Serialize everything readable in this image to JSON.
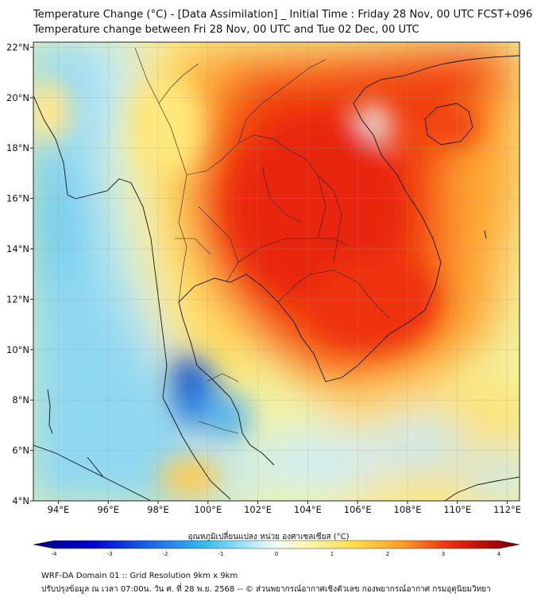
{
  "header": {
    "title_line1": "Temperature Change (°C) - [Data Assimilation] _ Initial Time : Friday 28 Nov, 00 UTC FCST+096",
    "title_line2": "Temperature change between Fri 28 Nov, 00 UTC and Tue 02 Dec, 00 UTC"
  },
  "map": {
    "lon_labels": [
      "94°E",
      "96°E",
      "98°E",
      "100°E",
      "102°E",
      "104°E",
      "106°E",
      "108°E",
      "110°E",
      "112°E"
    ],
    "lat_labels": [
      "22°N",
      "20°N",
      "18°N",
      "16°N",
      "14°N",
      "12°N",
      "10°N",
      "8°N",
      "6°N",
      "4°N"
    ],
    "lon_range": [
      93,
      112.5
    ],
    "lat_range": [
      4,
      22.2
    ]
  },
  "colorbar": {
    "label": "อุณหภูมิเปลี่ยนแปลง หน่วย องศาเซลเซียส (°C)",
    "ticks": [
      "-4",
      "-3",
      "-2",
      "-1",
      "0",
      "1",
      "2",
      "3",
      "4"
    ],
    "range": [
      -4,
      4
    ]
  },
  "footer": {
    "line1": "WRF-DA Domain 01 :: Grid Resolution 9km x 9km",
    "line2": "ปรับปรุงข้อมูล ณ เวลา 07:00น. วัน ศ. ที่ 28 พ.ย. 2568 -- © ส่วนพยากรณ์อากาศเชิงตัวเลข กองพยากรณ์อากาศ กรมอุตุนิยมวิทยา"
  }
}
